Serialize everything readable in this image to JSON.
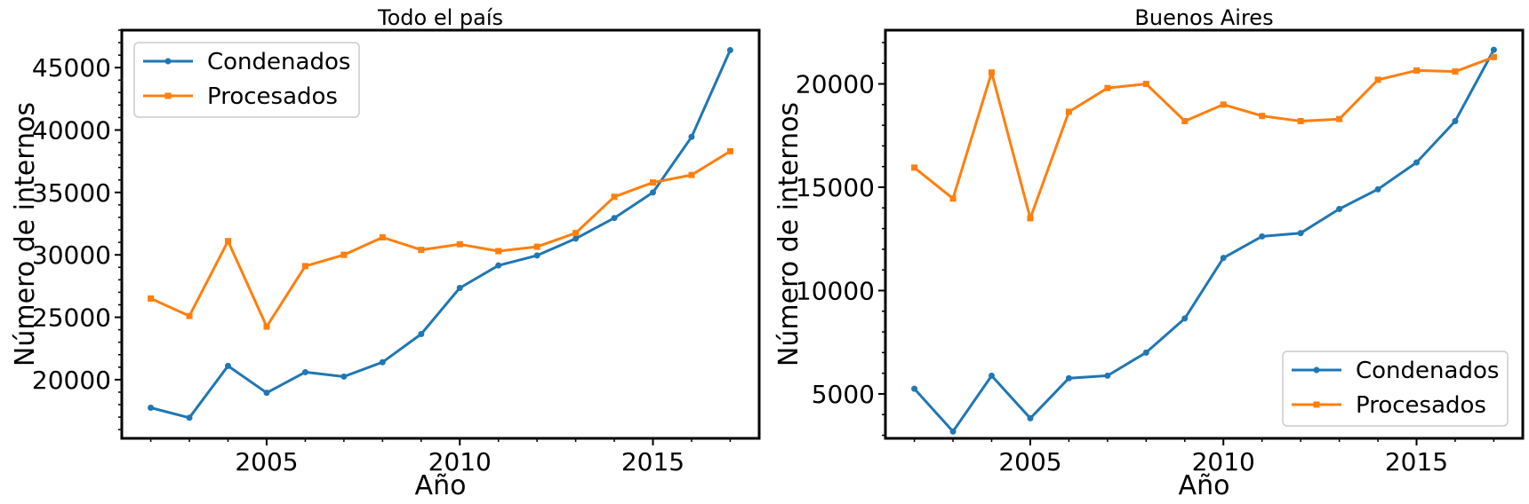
{
  "chart_data": [
    {
      "type": "line",
      "title": "Todo el país",
      "xlabel": "Año",
      "ylabel": "Número de internos",
      "xlim": [
        2001.25,
        2017.75
      ],
      "ylim": [
        15300,
        48000
      ],
      "xticks": [
        2005,
        2010,
        2015
      ],
      "yticks": [
        20000,
        25000,
        30000,
        35000,
        40000,
        45000
      ],
      "grid": false,
      "legend_position": "top-left",
      "x": [
        2002,
        2003,
        2004,
        2005,
        2006,
        2007,
        2008,
        2009,
        2010,
        2011,
        2012,
        2013,
        2014,
        2015,
        2016,
        2017
      ],
      "series": [
        {
          "name": "Condenados",
          "color": "#1f77b4",
          "marker": "circle",
          "values": [
            17750,
            16950,
            21100,
            18950,
            20600,
            20250,
            21400,
            23650,
            27350,
            29150,
            29950,
            31300,
            32950,
            35000,
            39450,
            46400
          ]
        },
        {
          "name": "Procesados",
          "color": "#ff7f0e",
          "marker": "square",
          "values": [
            26500,
            25100,
            31100,
            24250,
            29100,
            30000,
            31400,
            30400,
            30850,
            30300,
            30650,
            31750,
            34650,
            35800,
            36400,
            38300
          ]
        }
      ]
    },
    {
      "type": "line",
      "title": "Buenos Aires",
      "xlabel": "Año",
      "ylabel": "Número de internos",
      "xlim": [
        2001.25,
        2017.75
      ],
      "ylim": [
        2850,
        22600
      ],
      "xticks": [
        2005,
        2010,
        2015
      ],
      "yticks": [
        5000,
        10000,
        15000,
        20000
      ],
      "grid": false,
      "legend_position": "bottom-right",
      "x": [
        2002,
        2003,
        2004,
        2005,
        2006,
        2007,
        2008,
        2009,
        2010,
        2011,
        2012,
        2013,
        2014,
        2015,
        2016,
        2017
      ],
      "series": [
        {
          "name": "Condenados",
          "color": "#1f77b4",
          "marker": "circle",
          "values": [
            5250,
            3180,
            5880,
            3820,
            5760,
            5880,
            7000,
            8650,
            11580,
            12620,
            12780,
            13950,
            14900,
            16200,
            18200,
            21650
          ]
        },
        {
          "name": "Procesados",
          "color": "#ff7f0e",
          "marker": "square",
          "values": [
            15950,
            14450,
            20550,
            13500,
            18650,
            19800,
            20000,
            18200,
            19000,
            18450,
            18200,
            18300,
            20200,
            20650,
            20600,
            21300
          ]
        }
      ]
    }
  ]
}
